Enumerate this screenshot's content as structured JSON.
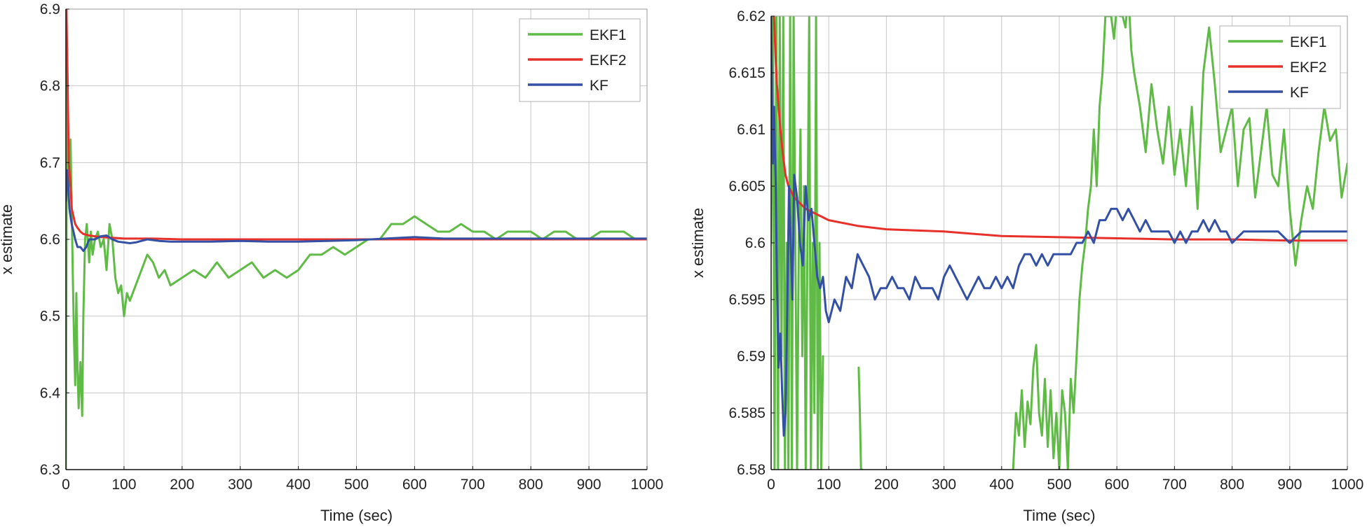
{
  "chart_data": [
    {
      "type": "line",
      "title": "",
      "xlabel": "Time (sec)",
      "ylabel": "x estimate",
      "xlim": [
        0,
        1000
      ],
      "ylim": [
        6.3,
        6.9
      ],
      "xticks": [
        0,
        100,
        200,
        300,
        400,
        500,
        600,
        700,
        800,
        900,
        1000
      ],
      "yticks": [
        6.3,
        6.4,
        6.5,
        6.6,
        6.7,
        6.8,
        6.9
      ],
      "ytick_labels": [
        "6.3",
        "6.4",
        "6.5",
        "6.6",
        "6.7",
        "6.8",
        "6.9"
      ],
      "grid": true,
      "legend": "top-right",
      "series": [
        {
          "name": "EKF1",
          "color": "#5fbb46",
          "x": [
            0,
            2,
            4,
            6,
            8,
            10,
            12,
            14,
            16,
            18,
            20,
            22,
            25,
            28,
            30,
            33,
            36,
            40,
            43,
            46,
            50,
            55,
            60,
            65,
            70,
            75,
            80,
            85,
            90,
            95,
            100,
            105,
            110,
            120,
            130,
            140,
            150,
            160,
            170,
            180,
            200,
            220,
            240,
            260,
            280,
            300,
            320,
            340,
            360,
            380,
            400,
            420,
            440,
            460,
            480,
            500,
            520,
            540,
            560,
            580,
            600,
            620,
            640,
            660,
            680,
            700,
            720,
            740,
            760,
            780,
            800,
            820,
            840,
            860,
            880,
            900,
            920,
            940,
            960,
            980,
            1000
          ],
          "values": [
            6.3,
            6.85,
            6.72,
            6.67,
            6.73,
            6.64,
            6.55,
            6.47,
            6.41,
            6.53,
            6.43,
            6.38,
            6.44,
            6.37,
            6.5,
            6.6,
            6.62,
            6.57,
            6.61,
            6.58,
            6.6,
            6.61,
            6.59,
            6.6,
            6.56,
            6.62,
            6.6,
            6.55,
            6.53,
            6.54,
            6.5,
            6.53,
            6.52,
            6.54,
            6.56,
            6.58,
            6.57,
            6.55,
            6.56,
            6.54,
            6.55,
            6.56,
            6.55,
            6.57,
            6.55,
            6.56,
            6.57,
            6.55,
            6.56,
            6.55,
            6.56,
            6.58,
            6.58,
            6.59,
            6.58,
            6.59,
            6.6,
            6.6,
            6.62,
            6.62,
            6.63,
            6.62,
            6.61,
            6.61,
            6.62,
            6.61,
            6.61,
            6.6,
            6.61,
            6.61,
            6.61,
            6.6,
            6.61,
            6.61,
            6.6,
            6.6,
            6.61,
            6.61,
            6.61,
            6.6,
            6.6
          ]
        },
        {
          "name": "EKF2",
          "color": "#e8302a",
          "x": [
            0,
            1,
            3,
            5,
            8,
            10,
            13,
            16,
            20,
            25,
            30,
            40,
            50,
            60,
            80,
            100,
            150,
            200,
            300,
            400,
            500,
            600,
            700,
            800,
            900,
            1000
          ],
          "values": [
            6.9,
            6.9,
            6.8,
            6.7,
            6.67,
            6.64,
            6.63,
            6.62,
            6.615,
            6.61,
            6.607,
            6.605,
            6.604,
            6.603,
            6.602,
            6.601,
            6.601,
            6.6,
            6.6,
            6.6,
            6.6,
            6.6,
            6.6,
            6.6,
            6.6,
            6.6
          ]
        },
        {
          "name": "KF",
          "color": "#3450a4",
          "x": [
            0,
            2,
            4,
            6,
            8,
            10,
            13,
            16,
            20,
            25,
            30,
            35,
            40,
            50,
            60,
            70,
            80,
            90,
            100,
            110,
            120,
            140,
            160,
            180,
            200,
            250,
            300,
            350,
            400,
            450,
            500,
            550,
            600,
            650,
            700,
            750,
            800,
            850,
            900,
            950,
            1000
          ],
          "values": [
            6.65,
            6.69,
            6.67,
            6.64,
            6.63,
            6.62,
            6.61,
            6.6,
            6.59,
            6.59,
            6.585,
            6.59,
            6.6,
            6.6,
            6.604,
            6.605,
            6.6,
            6.597,
            6.596,
            6.595,
            6.596,
            6.6,
            6.598,
            6.597,
            6.597,
            6.597,
            6.598,
            6.597,
            6.597,
            6.598,
            6.599,
            6.601,
            6.603,
            6.601,
            6.601,
            6.601,
            6.601,
            6.601,
            6.601,
            6.601,
            6.601
          ]
        }
      ]
    },
    {
      "type": "line",
      "title": "",
      "xlabel": "Time (sec)",
      "ylabel": "x estimate",
      "xlim": [
        0,
        1000
      ],
      "ylim": [
        6.58,
        6.62
      ],
      "xticks": [
        0,
        100,
        200,
        300,
        400,
        500,
        600,
        700,
        800,
        900,
        1000
      ],
      "yticks": [
        6.58,
        6.585,
        6.59,
        6.595,
        6.6,
        6.605,
        6.61,
        6.615,
        6.62
      ],
      "ytick_labels": [
        "6.58",
        "6.585",
        "6.59",
        "6.595",
        "6.6",
        "6.605",
        "6.61",
        "6.615",
        "6.62"
      ],
      "grid": true,
      "legend": "top-right",
      "series": [
        {
          "name": "EKF1",
          "color": "#5fbb46",
          "segments": [
            {
              "x": [
                0,
                3,
                6,
                9,
                12,
                15,
                18,
                21,
                24,
                27,
                30,
                33,
                36,
                39,
                42,
                45,
                48,
                51,
                54,
                57,
                60,
                63,
                66,
                69,
                72,
                75,
                78,
                81,
                84,
                87,
                90
              ],
              "values": [
                6.6,
                6.62,
                6.58,
                6.62,
                6.58,
                6.62,
                6.59,
                6.62,
                6.58,
                6.6,
                6.58,
                6.62,
                6.58,
                6.62,
                6.6,
                6.58,
                6.6,
                6.61,
                6.59,
                6.605,
                6.58,
                6.6,
                6.62,
                6.58,
                6.6,
                6.585,
                6.62,
                6.58,
                6.6,
                6.58,
                6.59
              ]
            },
            {
              "x": [
                152,
                154,
                156,
                158
              ],
              "values": [
                6.589,
                6.585,
                6.58,
                6.58
              ]
            },
            {
              "x": [
                420,
                425,
                430,
                435,
                440,
                445,
                450,
                455,
                460,
                465,
                470,
                475,
                480,
                485,
                490,
                495,
                500,
                505,
                510,
                515,
                520,
                525,
                530,
                535,
                540,
                545,
                550,
                555,
                560,
                565,
                570,
                575,
                580,
                585,
                590,
                595,
                600,
                605,
                610,
                615,
                620,
                625,
                630,
                640,
                650,
                660,
                670,
                680,
                690,
                700,
                710,
                720,
                730,
                740,
                750,
                760,
                770,
                780,
                790,
                800,
                810,
                820,
                830,
                840,
                850,
                860,
                870,
                880,
                890,
                900,
                910,
                920,
                930,
                940,
                950,
                960,
                970,
                980,
                990,
                1000
              ],
              "values": [
                6.58,
                6.585,
                6.583,
                6.587,
                6.582,
                6.586,
                6.584,
                6.589,
                6.591,
                6.585,
                6.583,
                6.588,
                6.582,
                6.587,
                6.581,
                6.585,
                6.58,
                6.587,
                6.585,
                6.58,
                6.588,
                6.585,
                6.59,
                6.595,
                6.598,
                6.6,
                6.603,
                6.605,
                6.61,
                6.605,
                6.612,
                6.615,
                6.62,
                6.62,
                6.62,
                6.618,
                6.621,
                6.62,
                6.62,
                6.619,
                6.622,
                6.617,
                6.615,
                6.612,
                6.608,
                6.614,
                6.61,
                6.607,
                6.612,
                6.606,
                6.61,
                6.605,
                6.612,
                6.603,
                6.615,
                6.619,
                6.614,
                6.608,
                6.61,
                6.612,
                6.605,
                6.61,
                6.611,
                6.604,
                6.608,
                6.612,
                6.606,
                6.605,
                6.61,
                6.603,
                6.598,
                6.602,
                6.605,
                6.603,
                6.608,
                6.612,
                6.609,
                6.61,
                6.604,
                6.607
              ]
            }
          ]
        },
        {
          "name": "EKF2",
          "color": "#e8302a",
          "x": [
            5,
            8,
            10,
            13,
            16,
            20,
            25,
            30,
            40,
            50,
            60,
            80,
            100,
            150,
            200,
            300,
            400,
            500,
            600,
            700,
            800,
            900,
            1000
          ],
          "values": [
            6.62,
            6.616,
            6.614,
            6.612,
            6.61,
            6.608,
            6.606,
            6.605,
            6.604,
            6.6035,
            6.603,
            6.6025,
            6.602,
            6.6015,
            6.6012,
            6.601,
            6.6006,
            6.6005,
            6.6004,
            6.6003,
            6.6003,
            6.6002,
            6.6002
          ]
        },
        {
          "name": "KF",
          "color": "#3450a4",
          "x": [
            0,
            3,
            5,
            8,
            10,
            13,
            16,
            19,
            22,
            25,
            28,
            31,
            34,
            37,
            40,
            45,
            50,
            55,
            60,
            65,
            70,
            75,
            80,
            85,
            90,
            95,
            100,
            110,
            120,
            130,
            140,
            150,
            160,
            170,
            180,
            190,
            200,
            210,
            220,
            230,
            240,
            250,
            260,
            270,
            280,
            290,
            300,
            310,
            320,
            330,
            340,
            350,
            360,
            370,
            380,
            390,
            400,
            410,
            420,
            430,
            440,
            450,
            460,
            470,
            480,
            490,
            500,
            510,
            520,
            530,
            540,
            550,
            560,
            570,
            580,
            590,
            600,
            610,
            620,
            630,
            640,
            650,
            660,
            670,
            680,
            690,
            700,
            710,
            720,
            730,
            740,
            750,
            760,
            770,
            780,
            790,
            800,
            820,
            840,
            860,
            880,
            900,
            920,
            940,
            960,
            980,
            1000
          ],
          "values": [
            6.62,
            6.607,
            6.612,
            6.605,
            6.597,
            6.589,
            6.592,
            6.587,
            6.583,
            6.585,
            6.594,
            6.605,
            6.6,
            6.595,
            6.606,
            6.604,
            6.6,
            6.598,
            6.605,
            6.602,
            6.603,
            6.6,
            6.597,
            6.596,
            6.597,
            6.594,
            6.593,
            6.595,
            6.594,
            6.597,
            6.596,
            6.599,
            6.598,
            6.597,
            6.595,
            6.596,
            6.596,
            6.597,
            6.596,
            6.596,
            6.595,
            6.597,
            6.596,
            6.596,
            6.596,
            6.595,
            6.597,
            6.598,
            6.597,
            6.596,
            6.595,
            6.596,
            6.597,
            6.596,
            6.596,
            6.597,
            6.596,
            6.597,
            6.596,
            6.598,
            6.599,
            6.599,
            6.598,
            6.599,
            6.598,
            6.599,
            6.599,
            6.599,
            6.599,
            6.6,
            6.6,
            6.601,
            6.6,
            6.602,
            6.602,
            6.603,
            6.603,
            6.602,
            6.603,
            6.602,
            6.601,
            6.602,
            6.601,
            6.601,
            6.601,
            6.601,
            6.6,
            6.601,
            6.6,
            6.601,
            6.601,
            6.602,
            6.601,
            6.602,
            6.601,
            6.601,
            6.6,
            6.601,
            6.601,
            6.601,
            6.601,
            6.6,
            6.601,
            6.601,
            6.601,
            6.601,
            6.601
          ]
        }
      ]
    }
  ]
}
